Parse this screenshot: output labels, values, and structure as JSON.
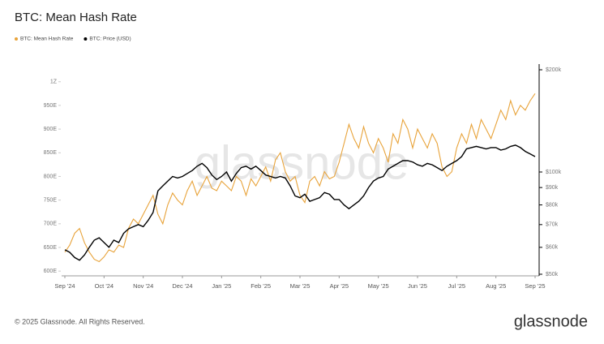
{
  "chart_data": {
    "type": "line",
    "title": "BTC: Mean Hash Rate",
    "watermark": "glassnode",
    "footer": "© 2025 Glassnode. All Rights Reserved.",
    "brand": "glassnode",
    "legend": "top-left",
    "grid": false,
    "categories": [
      "Sep '24",
      null,
      null,
      null,
      null,
      null,
      null,
      null,
      "Oct '24",
      null,
      null,
      null,
      null,
      null,
      null,
      null,
      "Nov '24",
      null,
      null,
      null,
      null,
      null,
      null,
      null,
      "Dec '24",
      null,
      null,
      null,
      null,
      null,
      null,
      null,
      "Jan '25",
      null,
      null,
      null,
      null,
      null,
      null,
      null,
      "Feb '25",
      null,
      null,
      null,
      null,
      null,
      null,
      null,
      "Mar '25",
      null,
      null,
      null,
      null,
      null,
      null,
      null,
      "Apr '25",
      null,
      null,
      null,
      null,
      null,
      null,
      null,
      "May '25",
      null,
      null,
      null,
      null,
      null,
      null,
      null,
      "Jun '25",
      null,
      null,
      null,
      null,
      null,
      null,
      null,
      "Jul '25",
      null,
      null,
      null,
      null,
      null,
      null,
      null,
      "Aug '25",
      null,
      null,
      null,
      null,
      null,
      null,
      null,
      "Sep '25"
    ],
    "ylim": [
      590,
      1027
    ],
    "yticks": [
      {
        "value": 600,
        "label": "600E"
      },
      {
        "value": 650,
        "label": "650E"
      },
      {
        "value": 700,
        "label": "700E"
      },
      {
        "value": 750,
        "label": "750E"
      },
      {
        "value": 800,
        "label": "800E"
      },
      {
        "value": 850,
        "label": "850E"
      },
      {
        "value": 900,
        "label": "900E"
      },
      {
        "value": 950,
        "label": "950E"
      },
      {
        "value": 1000,
        "label": "1Z"
      }
    ],
    "y2lim": [
      49450,
      201100
    ],
    "y2log": true,
    "y2ticks": [
      {
        "value": 50000,
        "label": "$50k"
      },
      {
        "value": 60000,
        "label": "$60k"
      },
      {
        "value": 70000,
        "label": "$70k"
      },
      {
        "value": 80000,
        "label": "$80k"
      },
      {
        "value": 90000,
        "label": "$90k"
      },
      {
        "value": 100000,
        "label": "$100k"
      },
      {
        "value": 200000,
        "label": "$200k"
      }
    ],
    "series": [
      {
        "name": "BTC: Mean Hash Rate",
        "color": "#e8a33a",
        "axis": "y",
        "values": [
          640,
          655,
          680,
          690,
          660,
          640,
          625,
          620,
          630,
          645,
          640,
          655,
          650,
          690,
          710,
          700,
          720,
          740,
          760,
          720,
          700,
          740,
          765,
          750,
          740,
          770,
          790,
          760,
          780,
          800,
          775,
          770,
          790,
          780,
          770,
          800,
          790,
          760,
          795,
          780,
          800,
          820,
          790,
          835,
          850,
          810,
          790,
          800,
          760,
          745,
          790,
          800,
          780,
          810,
          795,
          800,
          830,
          870,
          910,
          880,
          860,
          905,
          870,
          850,
          880,
          860,
          830,
          890,
          870,
          920,
          900,
          860,
          900,
          880,
          860,
          890,
          870,
          820,
          800,
          810,
          860,
          890,
          870,
          910,
          880,
          920,
          900,
          880,
          910,
          940,
          920,
          960,
          930,
          950,
          940,
          960,
          975
        ]
      },
      {
        "name": "BTC: Price (USD)",
        "color": "#000000",
        "axis": "y2",
        "values": [
          59000,
          58000,
          56000,
          55000,
          57000,
          60000,
          63000,
          64000,
          62000,
          60000,
          63000,
          62000,
          66000,
          68000,
          69000,
          70000,
          69000,
          72000,
          76000,
          88000,
          91000,
          94000,
          97000,
          96000,
          97000,
          99000,
          101000,
          104000,
          106000,
          103000,
          98000,
          95000,
          97000,
          100000,
          94000,
          99000,
          103000,
          104000,
          102000,
          104000,
          101000,
          98000,
          97000,
          96000,
          97000,
          96000,
          91000,
          85000,
          84000,
          86000,
          82000,
          83000,
          84000,
          87000,
          86000,
          83000,
          83000,
          80000,
          78000,
          80000,
          82000,
          85000,
          90000,
          94000,
          96000,
          97000,
          102000,
          104000,
          106000,
          108000,
          108000,
          107000,
          105000,
          104000,
          106000,
          105000,
          103000,
          101000,
          104000,
          106000,
          108000,
          111000,
          117000,
          118000,
          119000,
          118000,
          117000,
          118000,
          118000,
          116000,
          117000,
          119000,
          120000,
          118000,
          115000,
          113000,
          111000
        ]
      }
    ]
  }
}
